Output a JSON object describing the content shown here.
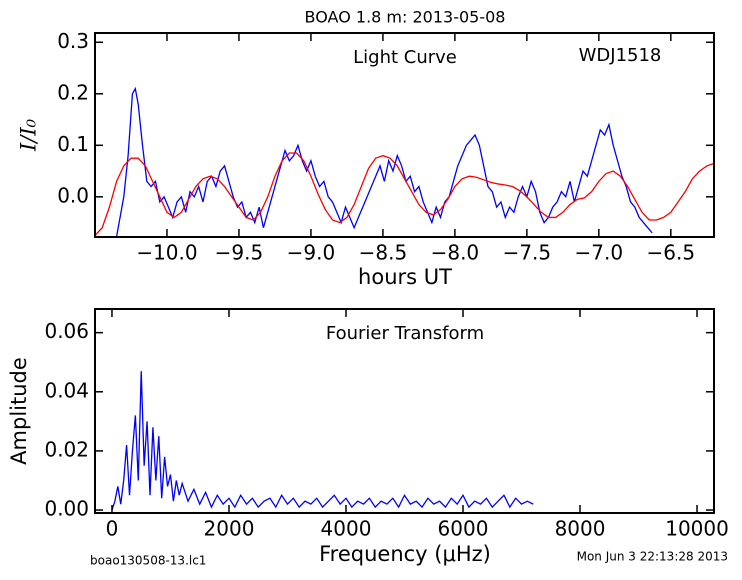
{
  "figure": {
    "title": "BOAO 1.8 m:  2013-05-08",
    "footer_left": "boao130508-13.lc1",
    "footer_right": "Mon Jun  3 22:13:28 2013"
  },
  "chart_data": [
    {
      "type": "line",
      "x_label": "hours UT",
      "y_label": "I/I₀",
      "annotations": [
        "Light Curve",
        "WDJ1518"
      ],
      "xlim": [
        -10.5,
        -6.2
      ],
      "ylim": [
        -0.078,
        0.318
      ],
      "xticks": [
        {
          "value": -10,
          "label": "−10.0"
        },
        {
          "value": -9.5,
          "label": "−9.5"
        },
        {
          "value": -9,
          "label": "−9.0"
        },
        {
          "value": -8.5,
          "label": "−8.5"
        },
        {
          "value": -8,
          "label": "−8.0"
        },
        {
          "value": -7.5,
          "label": "−7.5"
        },
        {
          "value": -7,
          "label": "−7.0"
        },
        {
          "value": -6.5,
          "label": "−6.5"
        }
      ],
      "yticks": [
        {
          "value": 0,
          "label": "0.0"
        },
        0.1,
        0.2,
        0.3
      ],
      "series": [
        {
          "color": "#0000ff",
          "x": [
            -10.35,
            -10.3,
            -10.27,
            -10.24,
            -10.22,
            -10.2,
            -10.17,
            -10.14,
            -10.11,
            -10.08,
            -10.05,
            -10.02,
            -9.99,
            -9.96,
            -9.93,
            -9.9,
            -9.87,
            -9.84,
            -9.81,
            -9.78,
            -9.75,
            -9.72,
            -9.69,
            -9.66,
            -9.63,
            -9.6,
            -9.57,
            -9.54,
            -9.51,
            -9.48,
            -9.45,
            -9.42,
            -9.39,
            -9.36,
            -9.33,
            -9.3,
            -9.27,
            -9.24,
            -9.21,
            -9.18,
            -9.15,
            -9.12,
            -9.09,
            -9.06,
            -9.03,
            -9.0,
            -8.97,
            -8.94,
            -8.91,
            -8.88,
            -8.85,
            -8.82,
            -8.79,
            -8.76,
            -8.73,
            -8.7,
            -8.67,
            -8.64,
            -8.61,
            -8.58,
            -8.55,
            -8.52,
            -8.49,
            -8.46,
            -8.43,
            -8.4,
            -8.37,
            -8.34,
            -8.31,
            -8.28,
            -8.25,
            -8.22,
            -8.19,
            -8.16,
            -8.13,
            -8.1,
            -8.07,
            -8.04,
            -8.01,
            -7.98,
            -7.95,
            -7.92,
            -7.89,
            -7.86,
            -7.83,
            -7.8,
            -7.77,
            -7.74,
            -7.71,
            -7.68,
            -7.65,
            -7.62,
            -7.59,
            -7.56,
            -7.53,
            -7.5,
            -7.47,
            -7.44,
            -7.41,
            -7.38,
            -7.35,
            -7.32,
            -7.29,
            -7.26,
            -7.23,
            -7.2,
            -7.17,
            -7.14,
            -7.11,
            -7.08,
            -7.05,
            -7.02,
            -6.99,
            -6.96,
            -6.93,
            -6.9,
            -6.87,
            -6.84,
            -6.81,
            -6.78,
            -6.75,
            -6.72,
            -6.69,
            -6.66,
            -6.63
          ],
          "values": [
            -0.077,
            0.0,
            0.08,
            0.2,
            0.21,
            0.18,
            0.1,
            0.03,
            0.02,
            0.03,
            -0.01,
            0.0,
            -0.02,
            -0.04,
            -0.01,
            0.0,
            -0.03,
            0.01,
            0.0,
            0.02,
            -0.01,
            0.03,
            0.04,
            0.02,
            0.05,
            0.06,
            0.03,
            0.0,
            -0.02,
            -0.01,
            -0.04,
            -0.03,
            -0.05,
            -0.02,
            -0.06,
            -0.03,
            0.0,
            0.03,
            0.06,
            0.09,
            0.07,
            0.08,
            0.1,
            0.07,
            0.05,
            0.07,
            0.04,
            0.02,
            0.03,
            0.0,
            -0.01,
            -0.03,
            -0.05,
            -0.02,
            -0.04,
            -0.06,
            -0.04,
            -0.02,
            0.0,
            0.02,
            0.04,
            0.06,
            0.03,
            0.07,
            0.05,
            0.08,
            0.06,
            0.03,
            0.04,
            0.01,
            0.02,
            -0.01,
            -0.03,
            -0.05,
            -0.02,
            -0.04,
            -0.01,
            0.0,
            0.03,
            0.06,
            0.08,
            0.1,
            0.11,
            0.12,
            0.1,
            0.06,
            0.02,
            0.01,
            -0.02,
            -0.01,
            -0.04,
            -0.02,
            -0.03,
            0.0,
            0.02,
            0.0,
            0.03,
            0.01,
            -0.03,
            -0.05,
            -0.04,
            -0.02,
            -0.01,
            0.01,
            0.0,
            0.03,
            -0.01,
            0.02,
            0.05,
            0.04,
            0.07,
            0.1,
            0.13,
            0.12,
            0.14,
            0.1,
            0.07,
            0.04,
            0.02,
            -0.01,
            -0.02,
            -0.04,
            -0.05,
            -0.06,
            -0.07
          ]
        },
        {
          "color": "#ff0000",
          "x": [
            -10.5,
            -10.45,
            -10.4,
            -10.35,
            -10.3,
            -10.25,
            -10.2,
            -10.15,
            -10.1,
            -10.05,
            -10.0,
            -9.95,
            -9.9,
            -9.85,
            -9.8,
            -9.75,
            -9.7,
            -9.65,
            -9.6,
            -9.55,
            -9.5,
            -9.45,
            -9.4,
            -9.35,
            -9.3,
            -9.25,
            -9.2,
            -9.15,
            -9.1,
            -9.05,
            -9.0,
            -8.95,
            -8.9,
            -8.85,
            -8.8,
            -8.75,
            -8.7,
            -8.65,
            -8.6,
            -8.55,
            -8.5,
            -8.45,
            -8.4,
            -8.35,
            -8.3,
            -8.25,
            -8.2,
            -8.15,
            -8.1,
            -8.05,
            -8.0,
            -7.95,
            -7.9,
            -7.85,
            -7.8,
            -7.75,
            -7.7,
            -7.65,
            -7.6,
            -7.55,
            -7.5,
            -7.45,
            -7.4,
            -7.35,
            -7.3,
            -7.25,
            -7.2,
            -7.15,
            -7.1,
            -7.05,
            -7.0,
            -6.95,
            -6.9,
            -6.85,
            -6.8,
            -6.75,
            -6.7,
            -6.65,
            -6.6,
            -6.55,
            -6.5,
            -6.45,
            -6.4,
            -6.35,
            -6.3,
            -6.25,
            -6.2
          ],
          "values": [
            -0.075,
            -0.06,
            -0.02,
            0.03,
            0.06,
            0.075,
            0.075,
            0.06,
            0.03,
            0.0,
            -0.03,
            -0.04,
            -0.03,
            -0.005,
            0.02,
            0.035,
            0.04,
            0.035,
            0.02,
            0.0,
            -0.02,
            -0.04,
            -0.045,
            -0.03,
            0.0,
            0.04,
            0.07,
            0.085,
            0.085,
            0.07,
            0.04,
            0.005,
            -0.025,
            -0.045,
            -0.05,
            -0.04,
            -0.015,
            0.02,
            0.055,
            0.075,
            0.08,
            0.075,
            0.06,
            0.035,
            0.01,
            -0.015,
            -0.03,
            -0.035,
            -0.025,
            -0.005,
            0.02,
            0.035,
            0.04,
            0.038,
            0.033,
            0.028,
            0.025,
            0.023,
            0.02,
            0.012,
            0.0,
            -0.015,
            -0.03,
            -0.04,
            -0.04,
            -0.03,
            -0.015,
            -0.005,
            -0.002,
            0.01,
            0.03,
            0.045,
            0.05,
            0.04,
            0.02,
            -0.005,
            -0.03,
            -0.045,
            -0.045,
            -0.04,
            -0.03,
            -0.01,
            0.01,
            0.035,
            0.05,
            0.06,
            0.065
          ]
        }
      ]
    },
    {
      "type": "line",
      "x_label": "Frequency (μHz)",
      "y_label": "Amplitude",
      "annotations": [
        "Fourier Transform"
      ],
      "xlim": [
        -290,
        10290
      ],
      "ylim": [
        -0.001,
        0.068
      ],
      "xticks": [
        0,
        2000,
        4000,
        6000,
        8000,
        10000
      ],
      "yticks": [
        {
          "value": 0,
          "label": "0.00"
        },
        0.02,
        0.04,
        0.06
      ],
      "series": [
        {
          "color": "#0000ff",
          "x": [
            0,
            50,
            100,
            150,
            200,
            250,
            300,
            350,
            400,
            450,
            500,
            550,
            600,
            650,
            700,
            750,
            800,
            850,
            900,
            950,
            1000,
            1050,
            1100,
            1150,
            1200,
            1300,
            1400,
            1500,
            1600,
            1700,
            1800,
            1900,
            2000,
            2100,
            2200,
            2300,
            2400,
            2500,
            2600,
            2700,
            2800,
            2900,
            3000,
            3100,
            3200,
            3300,
            3400,
            3500,
            3600,
            3700,
            3800,
            3900,
            4000,
            4100,
            4200,
            4300,
            4400,
            4500,
            4600,
            4700,
            4800,
            4900,
            5000,
            5100,
            5200,
            5300,
            5400,
            5500,
            5600,
            5700,
            5800,
            5900,
            6000,
            6100,
            6200,
            6300,
            6400,
            6500,
            6600,
            6700,
            6800,
            6900,
            7000,
            7100,
            7200
          ],
          "values": [
            0.0,
            0.003,
            0.008,
            0.002,
            0.01,
            0.022,
            0.005,
            0.02,
            0.032,
            0.01,
            0.047,
            0.015,
            0.03,
            0.005,
            0.028,
            0.01,
            0.025,
            0.004,
            0.018,
            0.008,
            0.012,
            0.003,
            0.01,
            0.005,
            0.009,
            0.003,
            0.007,
            0.002,
            0.006,
            0.001,
            0.005,
            0.002,
            0.004,
            0.001,
            0.005,
            0.002,
            0.004,
            0.001,
            0.003,
            0.004,
            0.001,
            0.005,
            0.002,
            0.004,
            0.001,
            0.003,
            0.002,
            0.004,
            0.001,
            0.003,
            0.005,
            0.002,
            0.004,
            0.001,
            0.003,
            0.002,
            0.004,
            0.001,
            0.003,
            0.002,
            0.004,
            0.001,
            0.005,
            0.002,
            0.003,
            0.001,
            0.004,
            0.002,
            0.003,
            0.001,
            0.004,
            0.002,
            0.005,
            0.001,
            0.003,
            0.002,
            0.004,
            0.001,
            0.003,
            0.005,
            0.001,
            0.004,
            0.002,
            0.003,
            0.002
          ]
        }
      ]
    }
  ]
}
